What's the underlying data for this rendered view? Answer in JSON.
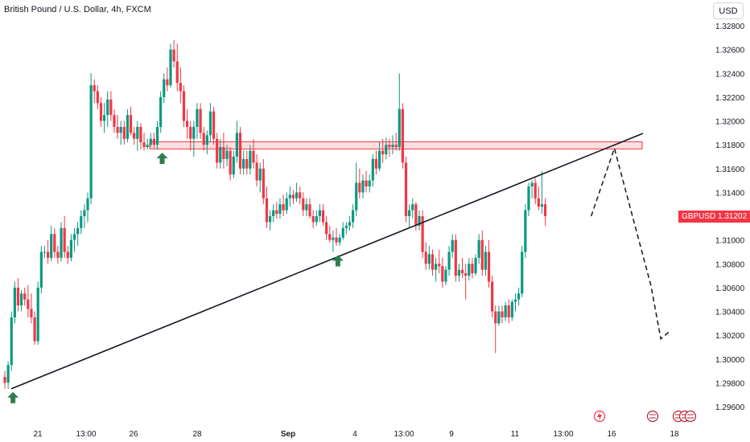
{
  "chart_data": {
    "type": "candlestick",
    "title": "British Pound / U.S. Dollar, 4h, FXCM",
    "symbol": "GBPUSD",
    "last_price": "1.31202",
    "currency": "USD",
    "ylim": [
      1.2955,
      1.3295
    ],
    "yticks": [
      "1.32800",
      "1.32600",
      "1.32400",
      "1.32200",
      "1.32000",
      "1.31800",
      "1.31600",
      "1.31400",
      "1.31200",
      "1.31000",
      "1.30800",
      "1.30600",
      "1.30400",
      "1.30200",
      "1.30000",
      "1.29800",
      "1.29600"
    ],
    "xticks": [
      "21",
      "13:00",
      "26",
      "28",
      "Sep",
      "4",
      "13:00",
      "9",
      "11",
      "13:00",
      "16",
      "18"
    ],
    "colors": {
      "up": "#089981",
      "down": "#f23645",
      "zone_fill": "#f8c9cd",
      "zone_border": "#f23645",
      "trendline": "#131722",
      "arrow": "#2e7d4f"
    },
    "resistance_zone": {
      "low": 1.31765,
      "high": 1.31825
    },
    "trendline": {
      "start_candle": 0,
      "start_price": 1.2975,
      "end_candle": 187,
      "end_price": 1.3189
    },
    "projection": [
      {
        "candle": 172,
        "price": 1.312
      },
      {
        "candle": 179,
        "price": 1.3177
      },
      {
        "candle": 190,
        "price": 1.3062
      },
      {
        "candle": 193,
        "price": 1.3017
      },
      {
        "candle": 196,
        "price": 1.3024
      }
    ],
    "markers": [
      {
        "candle": 1,
        "price": 1.2975
      },
      {
        "candle": 46,
        "price": 1.3176
      },
      {
        "candle": 99,
        "price": 1.309
      }
    ],
    "candles": [
      [
        1.2985,
        1.299,
        1.2975,
        1.298
      ],
      [
        1.298,
        1.2998,
        1.2975,
        1.2995
      ],
      [
        1.2995,
        1.304,
        1.299,
        1.3035
      ],
      [
        1.3035,
        1.3065,
        1.303,
        1.306
      ],
      [
        1.306,
        1.3068,
        1.304,
        1.3045
      ],
      [
        1.3045,
        1.3058,
        1.304,
        1.3055
      ],
      [
        1.3055,
        1.306,
        1.3045,
        1.305
      ],
      [
        1.305,
        1.3062,
        1.3035,
        1.3042
      ],
      [
        1.3042,
        1.3055,
        1.303,
        1.3035
      ],
      [
        1.3035,
        1.304,
        1.3012,
        1.3015
      ],
      [
        1.3015,
        1.3065,
        1.3012,
        1.306
      ],
      [
        1.306,
        1.3095,
        1.3055,
        1.309
      ],
      [
        1.309,
        1.3095,
        1.3085,
        1.309
      ],
      [
        1.309,
        1.31,
        1.308,
        1.3085
      ],
      [
        1.3085,
        1.3112,
        1.3082,
        1.3105
      ],
      [
        1.3105,
        1.311,
        1.3085,
        1.309
      ],
      [
        1.309,
        1.3095,
        1.308,
        1.3085
      ],
      [
        1.3085,
        1.3115,
        1.3082,
        1.311
      ],
      [
        1.311,
        1.312,
        1.3085,
        1.309
      ],
      [
        1.309,
        1.3095,
        1.308,
        1.3085
      ],
      [
        1.3085,
        1.3105,
        1.3082,
        1.31
      ],
      [
        1.31,
        1.311,
        1.309,
        1.3105
      ],
      [
        1.3105,
        1.3115,
        1.3095,
        1.311
      ],
      [
        1.311,
        1.3125,
        1.3105,
        1.312
      ],
      [
        1.312,
        1.313,
        1.311,
        1.3125
      ],
      [
        1.3125,
        1.314,
        1.3115,
        1.3135
      ],
      [
        1.3135,
        1.324,
        1.313,
        1.323
      ],
      [
        1.323,
        1.3235,
        1.3215,
        1.3225
      ],
      [
        1.3225,
        1.323,
        1.321,
        1.3215
      ],
      [
        1.3215,
        1.322,
        1.3195,
        1.32
      ],
      [
        1.32,
        1.3215,
        1.319,
        1.3205
      ],
      [
        1.3205,
        1.3225,
        1.3195,
        1.3218
      ],
      [
        1.3218,
        1.3225,
        1.32,
        1.3205
      ],
      [
        1.3205,
        1.321,
        1.319,
        1.3195
      ],
      [
        1.3195,
        1.3205,
        1.3185,
        1.319
      ],
      [
        1.319,
        1.32,
        1.318,
        1.3195
      ],
      [
        1.3195,
        1.32,
        1.318,
        1.3185
      ],
      [
        1.3185,
        1.321,
        1.3182,
        1.3205
      ],
      [
        1.3205,
        1.3212,
        1.3188,
        1.319
      ],
      [
        1.319,
        1.3195,
        1.318,
        1.3185
      ],
      [
        1.3185,
        1.32,
        1.3175,
        1.3195
      ],
      [
        1.3195,
        1.3198,
        1.3176,
        1.3182
      ],
      [
        1.3182,
        1.319,
        1.3175,
        1.3178
      ],
      [
        1.3178,
        1.3185,
        1.3176,
        1.318
      ],
      [
        1.318,
        1.319,
        1.3178,
        1.3185
      ],
      [
        1.3185,
        1.319,
        1.3177,
        1.318
      ],
      [
        1.318,
        1.32,
        1.3176,
        1.3195
      ],
      [
        1.3195,
        1.3225,
        1.319,
        1.322
      ],
      [
        1.322,
        1.324,
        1.3215,
        1.3235
      ],
      [
        1.3235,
        1.3245,
        1.3225,
        1.323
      ],
      [
        1.323,
        1.3265,
        1.3228,
        1.326
      ],
      [
        1.326,
        1.3268,
        1.3245,
        1.325
      ],
      [
        1.325,
        1.3265,
        1.3225,
        1.3232
      ],
      [
        1.3232,
        1.3245,
        1.3215,
        1.3225
      ],
      [
        1.3225,
        1.323,
        1.3195,
        1.32
      ],
      [
        1.32,
        1.321,
        1.3185,
        1.3195
      ],
      [
        1.3195,
        1.32,
        1.3175,
        1.3185
      ],
      [
        1.3185,
        1.32,
        1.317,
        1.3195
      ],
      [
        1.3195,
        1.3215,
        1.3185,
        1.321
      ],
      [
        1.321,
        1.3215,
        1.3185,
        1.319
      ],
      [
        1.319,
        1.3195,
        1.3175,
        1.318
      ],
      [
        1.318,
        1.3192,
        1.3172,
        1.3188
      ],
      [
        1.3188,
        1.3215,
        1.3182,
        1.3208
      ],
      [
        1.3208,
        1.3212,
        1.318,
        1.3185
      ],
      [
        1.3185,
        1.319,
        1.316,
        1.3165
      ],
      [
        1.3165,
        1.3185,
        1.316,
        1.3178
      ],
      [
        1.3178,
        1.319,
        1.316,
        1.3168
      ],
      [
        1.3168,
        1.318,
        1.3162,
        1.3175
      ],
      [
        1.3175,
        1.3178,
        1.315,
        1.3155
      ],
      [
        1.3155,
        1.3175,
        1.3152,
        1.317
      ],
      [
        1.317,
        1.32,
        1.3165,
        1.319
      ],
      [
        1.319,
        1.3195,
        1.3155,
        1.316
      ],
      [
        1.316,
        1.3175,
        1.3155,
        1.3168
      ],
      [
        1.3168,
        1.3175,
        1.3155,
        1.316
      ],
      [
        1.316,
        1.318,
        1.3155,
        1.3175
      ],
      [
        1.3175,
        1.3185,
        1.316,
        1.3165
      ],
      [
        1.3165,
        1.3172,
        1.3145,
        1.315
      ],
      [
        1.315,
        1.3165,
        1.314,
        1.316
      ],
      [
        1.316,
        1.3168,
        1.313,
        1.3135
      ],
      [
        1.3135,
        1.3145,
        1.311,
        1.3115
      ],
      [
        1.3115,
        1.3125,
        1.3108,
        1.312
      ],
      [
        1.312,
        1.313,
        1.3115,
        1.3125
      ],
      [
        1.3125,
        1.3132,
        1.3118,
        1.3122
      ],
      [
        1.3122,
        1.3135,
        1.3118,
        1.313
      ],
      [
        1.313,
        1.3138,
        1.312,
        1.3125
      ],
      [
        1.3125,
        1.314,
        1.3122,
        1.3135
      ],
      [
        1.3135,
        1.3145,
        1.3128,
        1.3138
      ],
      [
        1.3138,
        1.3142,
        1.313,
        1.3135
      ],
      [
        1.3135,
        1.3148,
        1.3132,
        1.314
      ],
      [
        1.314,
        1.3145,
        1.313,
        1.3135
      ],
      [
        1.3135,
        1.314,
        1.312,
        1.3125
      ],
      [
        1.3125,
        1.3135,
        1.312,
        1.313
      ],
      [
        1.313,
        1.3135,
        1.3118,
        1.312
      ],
      [
        1.312,
        1.3125,
        1.311,
        1.3115
      ],
      [
        1.3115,
        1.3125,
        1.3112,
        1.312
      ],
      [
        1.312,
        1.313,
        1.3115,
        1.3125
      ],
      [
        1.3125,
        1.313,
        1.3112,
        1.3115
      ],
      [
        1.3115,
        1.312,
        1.31,
        1.3105
      ],
      [
        1.3105,
        1.3112,
        1.3098,
        1.31
      ],
      [
        1.31,
        1.3108,
        1.309,
        1.3102
      ],
      [
        1.3102,
        1.311,
        1.3095,
        1.3098
      ],
      [
        1.3098,
        1.3105,
        1.3095,
        1.3102
      ],
      [
        1.3102,
        1.3115,
        1.31,
        1.311
      ],
      [
        1.311,
        1.3115,
        1.3105,
        1.3112
      ],
      [
        1.3112,
        1.312,
        1.3108,
        1.3115
      ],
      [
        1.3115,
        1.313,
        1.311,
        1.3125
      ],
      [
        1.3125,
        1.3165,
        1.312,
        1.3148
      ],
      [
        1.3148,
        1.316,
        1.3135,
        1.314
      ],
      [
        1.314,
        1.3155,
        1.3135,
        1.315
      ],
      [
        1.315,
        1.3158,
        1.314,
        1.3145
      ],
      [
        1.3145,
        1.3155,
        1.314,
        1.315
      ],
      [
        1.315,
        1.3172,
        1.3145,
        1.3168
      ],
      [
        1.3168,
        1.3175,
        1.3155,
        1.316
      ],
      [
        1.316,
        1.3182,
        1.3158,
        1.3175
      ],
      [
        1.3175,
        1.3185,
        1.3165,
        1.3172
      ],
      [
        1.3172,
        1.3186,
        1.3168,
        1.318
      ],
      [
        1.318,
        1.3185,
        1.317,
        1.3178
      ],
      [
        1.3178,
        1.3188,
        1.3172,
        1.318
      ],
      [
        1.318,
        1.319,
        1.3175,
        1.3178
      ],
      [
        1.3178,
        1.324,
        1.3175,
        1.321
      ],
      [
        1.321,
        1.3215,
        1.316,
        1.3165
      ],
      [
        1.3165,
        1.317,
        1.3115,
        1.312
      ],
      [
        1.312,
        1.313,
        1.311,
        1.3125
      ],
      [
        1.3125,
        1.3135,
        1.3118,
        1.313
      ],
      [
        1.313,
        1.3132,
        1.3108,
        1.3112
      ],
      [
        1.3112,
        1.3125,
        1.3108,
        1.312
      ],
      [
        1.312,
        1.3125,
        1.3085,
        1.309
      ],
      [
        1.309,
        1.3098,
        1.3075,
        1.308
      ],
      [
        1.308,
        1.3095,
        1.3075,
        1.3088
      ],
      [
        1.3088,
        1.3092,
        1.307,
        1.3075
      ],
      [
        1.3075,
        1.3085,
        1.3065,
        1.308
      ],
      [
        1.308,
        1.3092,
        1.3072,
        1.3078
      ],
      [
        1.3078,
        1.3085,
        1.306,
        1.3065
      ],
      [
        1.3065,
        1.3078,
        1.3062,
        1.3075
      ],
      [
        1.3075,
        1.3095,
        1.307,
        1.309
      ],
      [
        1.309,
        1.3105,
        1.3085,
        1.31
      ],
      [
        1.31,
        1.3105,
        1.3065,
        1.307
      ],
      [
        1.307,
        1.308,
        1.3065,
        1.3075
      ],
      [
        1.3075,
        1.3085,
        1.3068,
        1.3072
      ],
      [
        1.3072,
        1.308,
        1.305,
        1.307
      ],
      [
        1.307,
        1.3085,
        1.3066,
        1.308
      ],
      [
        1.308,
        1.3085,
        1.3068,
        1.3072
      ],
      [
        1.3072,
        1.3088,
        1.307,
        1.3085
      ],
      [
        1.3085,
        1.3105,
        1.308,
        1.31
      ],
      [
        1.31,
        1.3108,
        1.307,
        1.3075
      ],
      [
        1.3075,
        1.3095,
        1.307,
        1.309
      ],
      [
        1.309,
        1.31,
        1.306,
        1.3065
      ],
      [
        1.3065,
        1.307,
        1.3035,
        1.304
      ],
      [
        1.304,
        1.3045,
        1.3005,
        1.303
      ],
      [
        1.303,
        1.3045,
        1.3028,
        1.304
      ],
      [
        1.304,
        1.3045,
        1.303,
        1.3035
      ],
      [
        1.3035,
        1.3048,
        1.3032,
        1.3045
      ],
      [
        1.3045,
        1.305,
        1.303,
        1.3035
      ],
      [
        1.3035,
        1.305,
        1.3032,
        1.3048
      ],
      [
        1.3048,
        1.3055,
        1.304,
        1.305
      ],
      [
        1.305,
        1.306,
        1.3045,
        1.3055
      ],
      [
        1.3055,
        1.3095,
        1.3052,
        1.309
      ],
      [
        1.309,
        1.313,
        1.3085,
        1.3125
      ],
      [
        1.3125,
        1.3148,
        1.312,
        1.3145
      ],
      [
        1.3145,
        1.315,
        1.3135,
        1.3148
      ],
      [
        1.3148,
        1.3152,
        1.313,
        1.3135
      ],
      [
        1.3135,
        1.3145,
        1.3125,
        1.3128
      ],
      [
        1.3128,
        1.3158,
        1.3122,
        1.313
      ],
      [
        1.313,
        1.3135,
        1.3112,
        1.312
      ]
    ]
  },
  "labels": {
    "title": "British Pound / U.S. Dollar, 4h, FXCM",
    "currency_button": "USD",
    "price_badge": "GBPUSD  1.31202"
  }
}
